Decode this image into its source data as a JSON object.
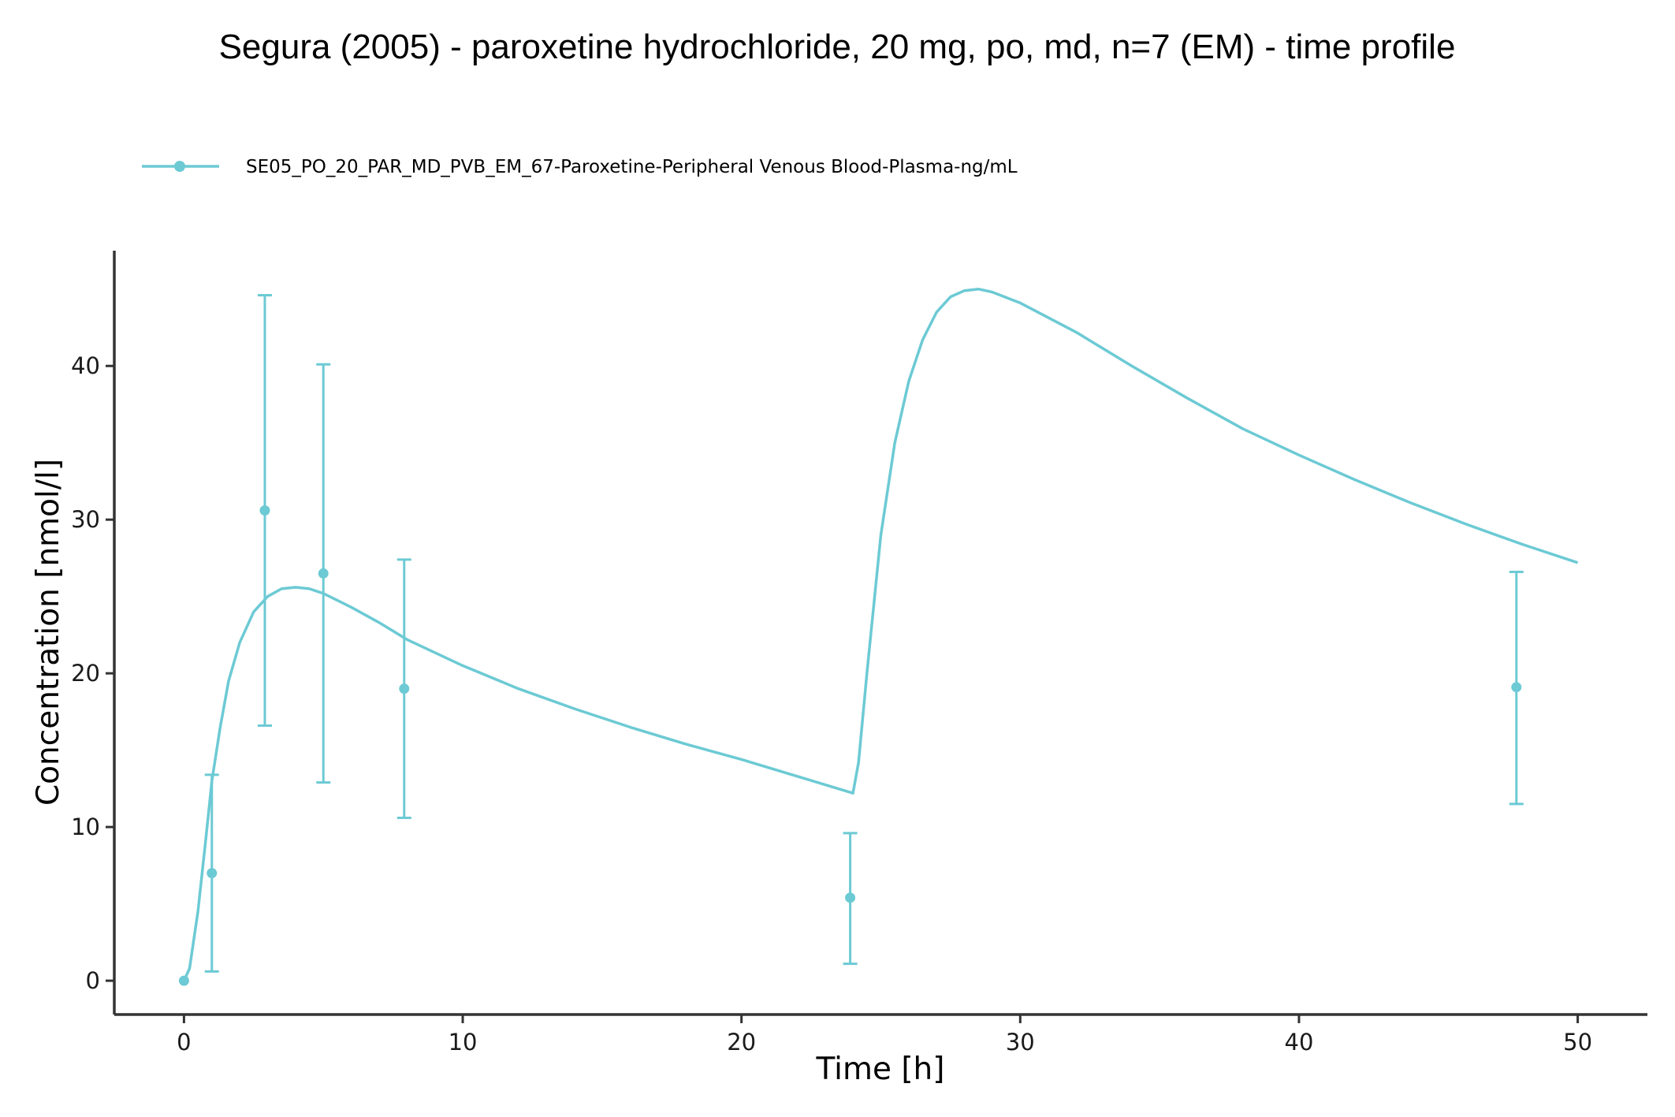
{
  "chart_data": {
    "type": "line",
    "title": "Segura (2005) - paroxetine hydrochloride, 20 mg, po, md, n=7 (EM) - time profile",
    "xlabel": "Time [h]",
    "ylabel": "Concentration [nmol/l]",
    "xlim": [
      -2.5,
      52.5
    ],
    "ylim": [
      -2.2,
      47.5
    ],
    "x_ticks": [
      0,
      10,
      20,
      30,
      40,
      50
    ],
    "y_ticks": [
      0,
      10,
      20,
      30,
      40
    ],
    "grid": false,
    "legend_position": "top-left",
    "color": "#6CCAD4",
    "legend": [
      {
        "label": "SE05_PO_20_PAR_MD_PVB_EM_67-Paroxetine-Peripheral Venous Blood-Plasma-ng/mL"
      }
    ],
    "series": [
      {
        "name": "SE05_PO_20_PAR_MD_PVB_EM_67-Paroxetine-Peripheral Venous Blood-Plasma-ng/mL",
        "kind": "observed",
        "x": [
          0,
          1,
          2.9,
          5.0,
          7.9,
          23.9,
          47.8
        ],
        "y": [
          0,
          7.0,
          30.6,
          26.5,
          19.0,
          5.4,
          19.1
        ],
        "y_lower": [
          0,
          0.6,
          16.6,
          12.9,
          10.6,
          1.1,
          11.5
        ],
        "y_upper": [
          0,
          13.4,
          44.6,
          40.1,
          27.4,
          9.6,
          26.6
        ]
      },
      {
        "kind": "simulated",
        "x": [
          0,
          0.2,
          0.5,
          0.8,
          1.0,
          1.3,
          1.6,
          2.0,
          2.5,
          3.0,
          3.5,
          4.0,
          4.5,
          5.0,
          6.0,
          7.0,
          8.0,
          10.0,
          12.0,
          14.0,
          16.0,
          18.0,
          20.0,
          22.0,
          24.0,
          24.2,
          24.5,
          25.0,
          25.5,
          26.0,
          26.5,
          27.0,
          27.5,
          28.0,
          28.5,
          29.0,
          30.0,
          32.0,
          34.0,
          36.0,
          38.0,
          40.0,
          42.0,
          44.0,
          46.0,
          48.0,
          50.0
        ],
        "y": [
          0,
          0.8,
          4.5,
          9.5,
          13.0,
          16.5,
          19.5,
          22.0,
          24.0,
          25.0,
          25.5,
          25.6,
          25.5,
          25.2,
          24.3,
          23.3,
          22.2,
          20.5,
          19.0,
          17.7,
          16.5,
          15.4,
          14.4,
          13.3,
          12.2,
          14.2,
          20.0,
          29.0,
          35.0,
          39.0,
          41.7,
          43.5,
          44.5,
          44.9,
          45.0,
          44.8,
          44.1,
          42.2,
          40.0,
          37.9,
          35.9,
          34.2,
          32.6,
          31.1,
          29.7,
          28.4,
          27.2
        ]
      }
    ]
  }
}
